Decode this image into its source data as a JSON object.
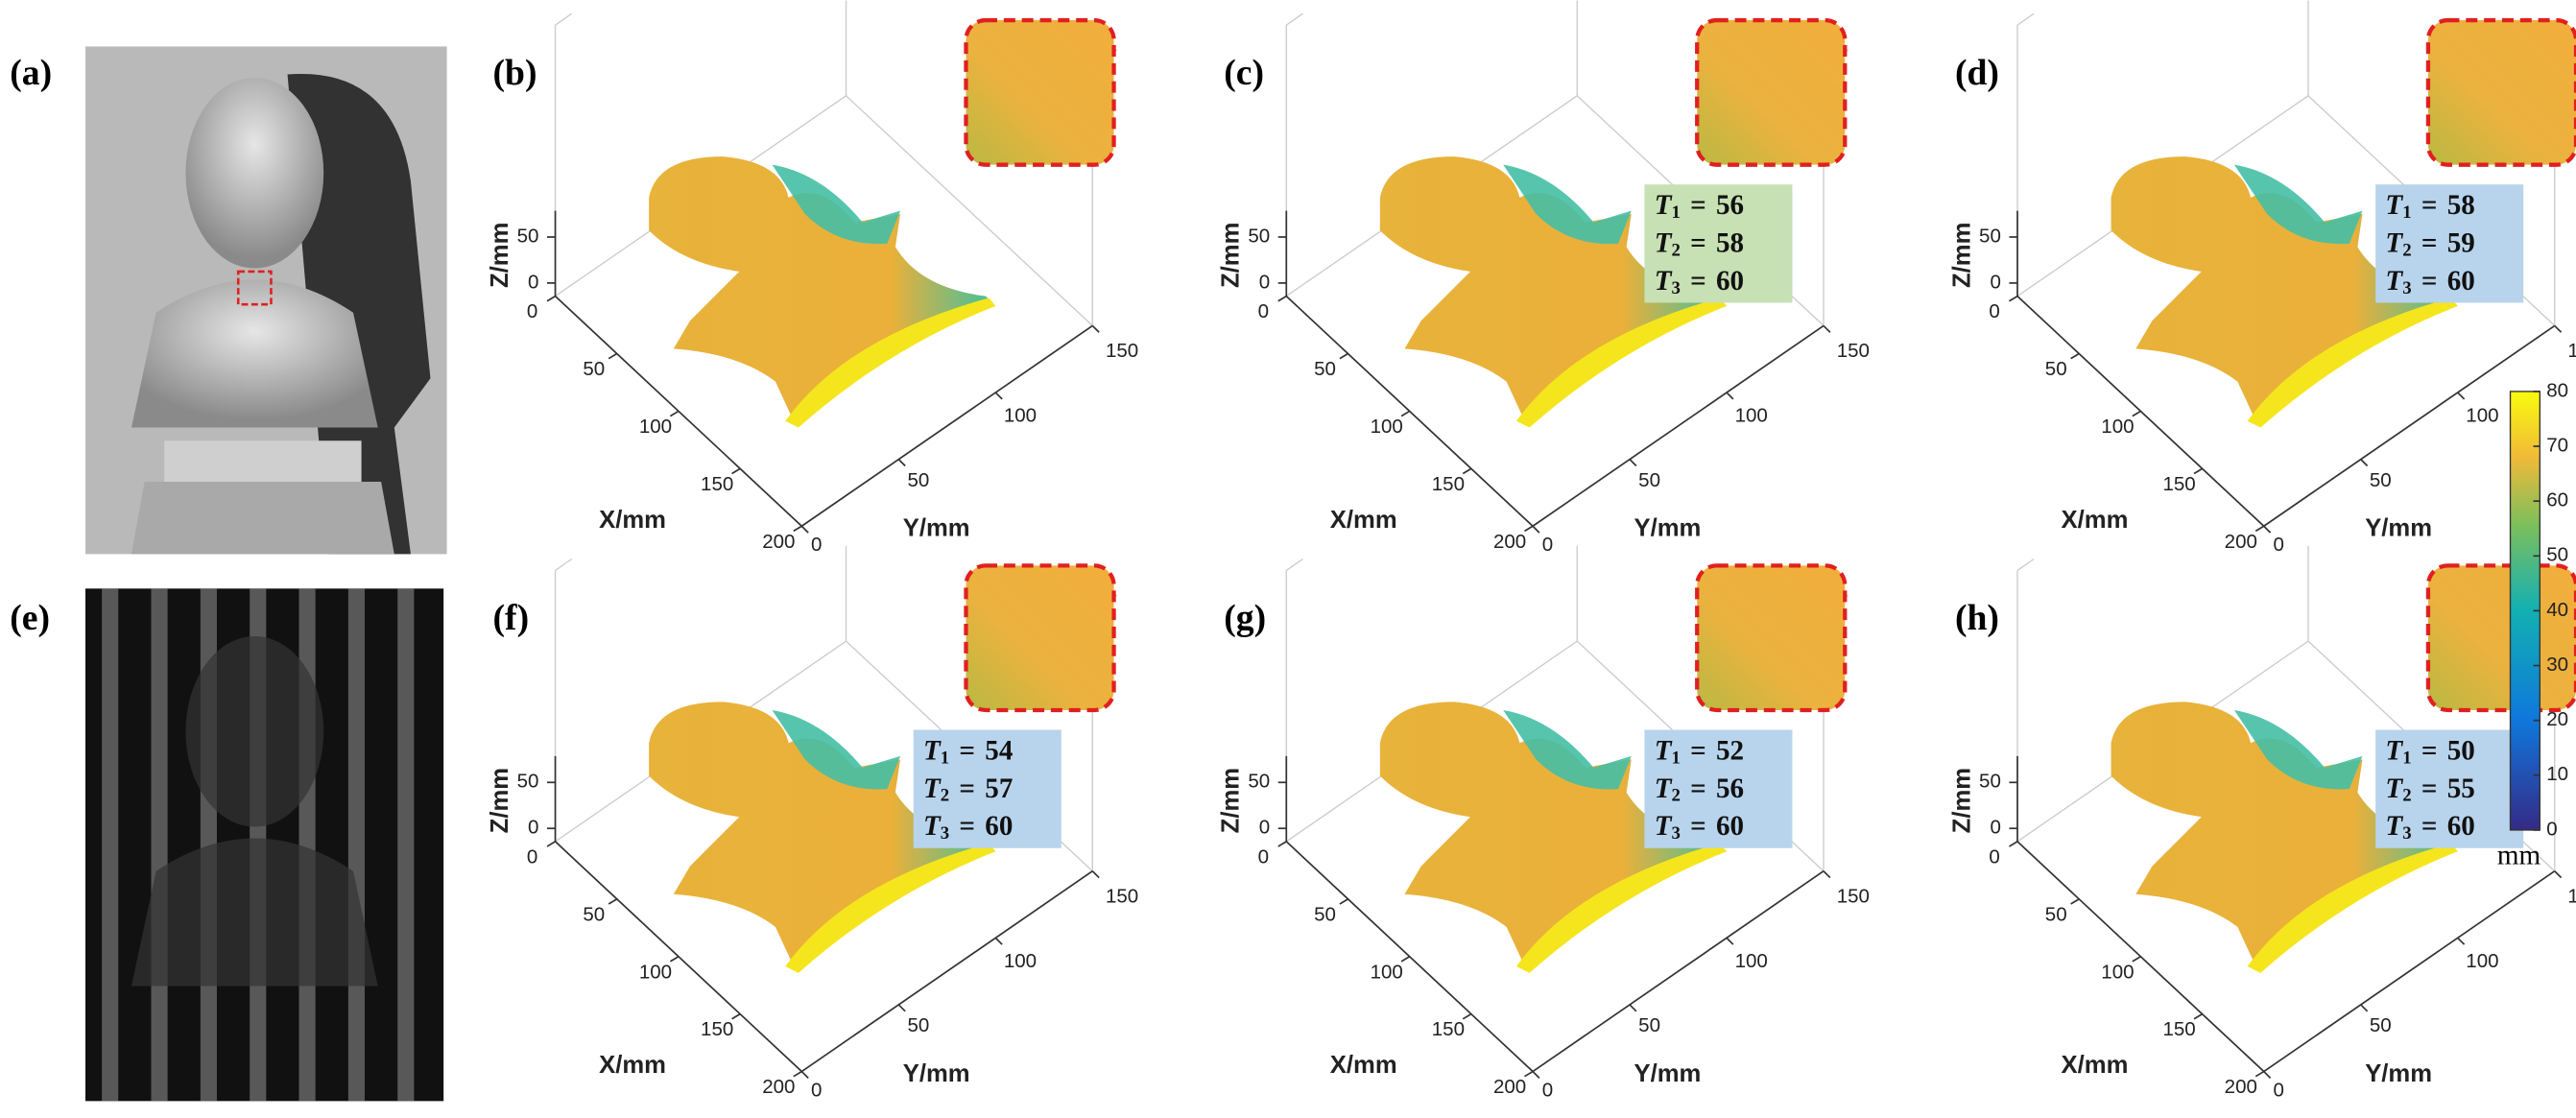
{
  "photos": [
    {
      "label": "(a)"
    },
    {
      "label": "(e)"
    }
  ],
  "relation": "=",
  "axes": {
    "x_label": "X/mm",
    "y_label": "Y/mm",
    "z_label": "Z/mm",
    "xlim": [
      0,
      200
    ],
    "xticks": [
      0,
      50,
      100,
      150,
      200
    ],
    "ylim": [
      0,
      150
    ],
    "yticks": [
      0,
      50,
      100,
      150
    ],
    "zlim": [
      0,
      50
    ],
    "zticks": [
      0,
      50
    ]
  },
  "panels": [
    {
      "label": "(b)",
      "thresholds": []
    },
    {
      "label": "(c)",
      "box_color": "#c7e0b4",
      "thresholds": [
        {
          "symbol": "T",
          "index": 1,
          "value": 56
        },
        {
          "symbol": "T",
          "index": 2,
          "value": 58
        },
        {
          "symbol": "T",
          "index": 3,
          "value": 60
        }
      ]
    },
    {
      "label": "(d)",
      "box_color": "#b8d4ec",
      "thresholds": [
        {
          "symbol": "T",
          "index": 1,
          "value": 58
        },
        {
          "symbol": "T",
          "index": 2,
          "value": 59
        },
        {
          "symbol": "T",
          "index": 3,
          "value": 60
        }
      ]
    },
    {
      "label": "(f)",
      "box_color": "#b8d4ec",
      "thresholds": [
        {
          "symbol": "T",
          "index": 1,
          "value": 54
        },
        {
          "symbol": "T",
          "index": 2,
          "value": 57
        },
        {
          "symbol": "T",
          "index": 3,
          "value": 60
        }
      ]
    },
    {
      "label": "(g)",
      "box_color": "#b8d4ec",
      "thresholds": [
        {
          "symbol": "T",
          "index": 1,
          "value": 52
        },
        {
          "symbol": "T",
          "index": 2,
          "value": 56
        },
        {
          "symbol": "T",
          "index": 3,
          "value": 60
        }
      ]
    },
    {
      "label": "(h)",
      "box_color": "#b8d4ec",
      "thresholds": [
        {
          "symbol": "T",
          "index": 1,
          "value": 50
        },
        {
          "symbol": "T",
          "index": 2,
          "value": 55
        },
        {
          "symbol": "T",
          "index": 3,
          "value": 60
        }
      ]
    }
  ],
  "colorbar": {
    "lim": [
      0,
      80
    ],
    "ticks": [
      0,
      10,
      20,
      30,
      40,
      50,
      60,
      70,
      80
    ],
    "unit": "mm"
  }
}
